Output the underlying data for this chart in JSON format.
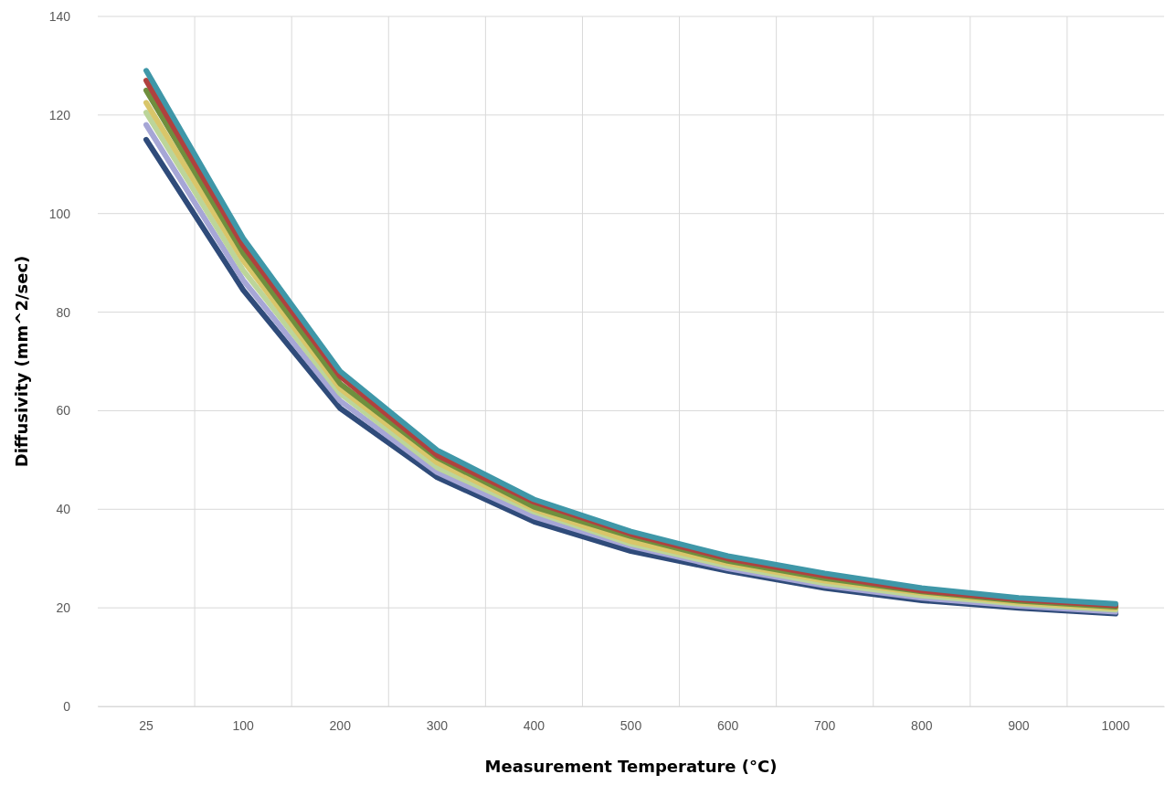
{
  "chart_data": {
    "type": "line",
    "xlabel": "Measurement Temperature (°C)",
    "ylabel": "Diffusivity (mm^2/sec)",
    "categories": [
      "25",
      "100",
      "200",
      "300",
      "400",
      "500",
      "600",
      "700",
      "800",
      "900",
      "1000"
    ],
    "ylim": [
      0,
      140
    ],
    "yticks": [
      0,
      20,
      40,
      60,
      80,
      100,
      120,
      140
    ],
    "grid": true,
    "marker": "none",
    "line_style": "solid",
    "series": [
      {
        "color": "#2f4b7a",
        "values": [
          115,
          84.5,
          60.5,
          46.5,
          37.5,
          31.5,
          27.5,
          24,
          21.5,
          20,
          18.8
        ]
      },
      {
        "color": "#a6a6d6",
        "values": [
          118,
          86.5,
          62,
          47.5,
          38.5,
          32.5,
          28,
          24.5,
          22,
          20.4,
          19.2
        ]
      },
      {
        "color": "#bcd59a",
        "values": [
          120.5,
          88.5,
          63.5,
          48.5,
          39.5,
          33,
          28.5,
          25,
          22.5,
          20.8,
          19.6
        ]
      },
      {
        "color": "#d9c66a",
        "values": [
          122.5,
          90.5,
          64.5,
          49.5,
          40,
          33.5,
          29,
          25.5,
          23,
          21.1,
          19.9
        ]
      },
      {
        "color": "#6f8f3e",
        "values": [
          125,
          92,
          65.5,
          50.5,
          40.5,
          34.5,
          29.5,
          26,
          23.3,
          21.4,
          20.2
        ]
      },
      {
        "color": "#b0413e",
        "values": [
          127,
          93.5,
          67,
          51,
          41.5,
          35,
          30,
          26.5,
          23.5,
          21.7,
          20.5
        ]
      },
      {
        "color": "#3f97a8",
        "values": [
          129,
          95,
          68,
          52,
          42,
          35.5,
          30.5,
          27,
          24,
          22,
          20.8
        ]
      }
    ]
  }
}
